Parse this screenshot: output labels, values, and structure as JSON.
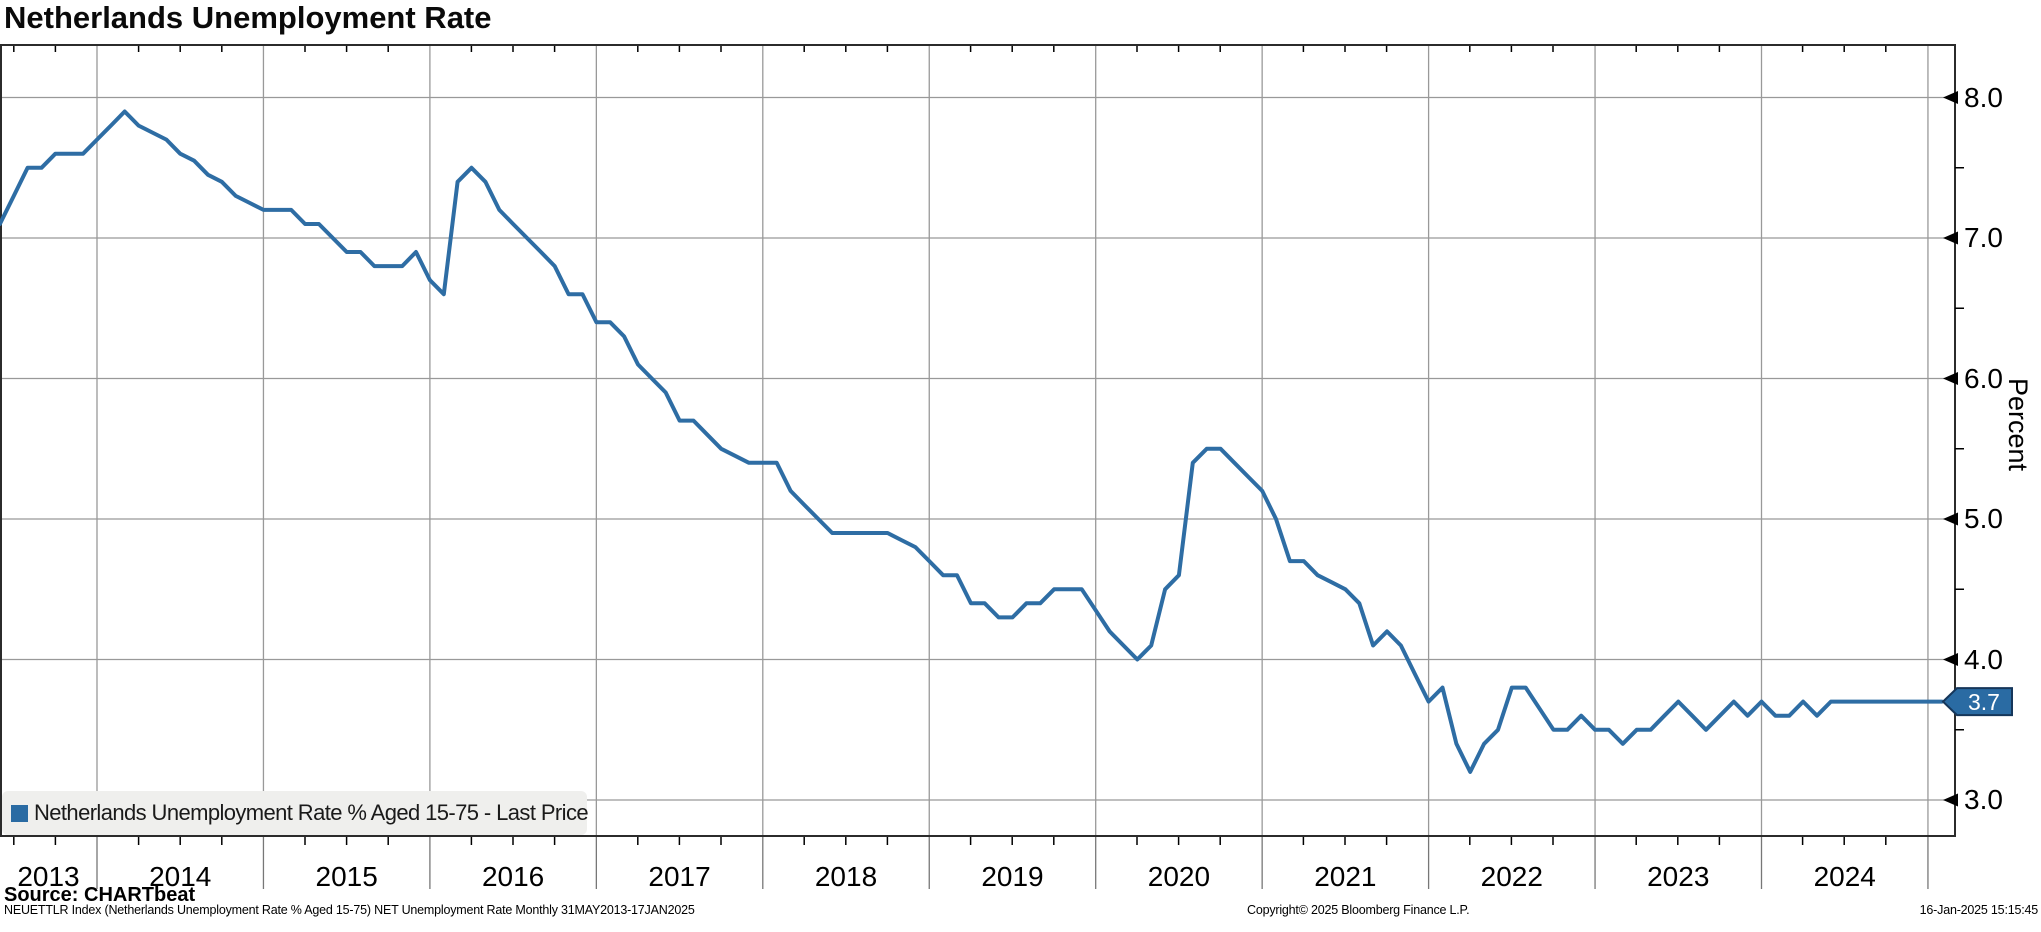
{
  "header": {
    "title": "Netherlands Unemployment Rate"
  },
  "legend": {
    "label": "Netherlands Unemployment Rate % Aged 15-75 - Last Price",
    "marker_color": "#2a6ba3"
  },
  "axis": {
    "percent_label": "Percent"
  },
  "badge": {
    "value": "3.7",
    "fill": "#2a6ba3",
    "border": "#15365a",
    "text_color": "#ffffff"
  },
  "footer": {
    "source": "Source: CHARTbeat",
    "description": "NEUETTLR Index (Netherlands Unemployment Rate % Aged 15-75) NET Unemployment Rate  Monthly 31MAY2013-17JAN2025",
    "copyright": "Copyright© 2025 Bloomberg Finance L.P.",
    "timestamp": "16-Jan-2025 15:15:45"
  },
  "chart_data": {
    "type": "line",
    "title": "Netherlands Unemployment Rate",
    "ylabel": "Percent",
    "series_name": "Netherlands Unemployment Rate % Aged 15-75 - Last Price",
    "frequency": "monthly",
    "range_label": "31MAY2013-17JAN2025",
    "first_month": "2013-05",
    "last_month": "2025-01",
    "last_price": 3.7,
    "line_color": "#2e6da4",
    "grid": true,
    "legend_position": "bottom-left",
    "y_ticks": [
      3.0,
      4.0,
      5.0,
      6.0,
      7.0,
      8.0
    ],
    "y_minor_ticks": [
      3.5,
      4.5,
      5.5,
      6.5,
      7.5
    ],
    "ylim": [
      2.6,
      8.4
    ],
    "x_years": [
      2013,
      2014,
      2015,
      2016,
      2017,
      2018,
      2019,
      2020,
      2021,
      2022,
      2023,
      2024
    ],
    "values": [
      7.1,
      7.3,
      7.5,
      7.5,
      7.6,
      7.6,
      7.6,
      7.7,
      7.8,
      7.9,
      7.8,
      7.75,
      7.7,
      7.6,
      7.55,
      7.45,
      7.4,
      7.3,
      7.25,
      7.2,
      7.2,
      7.2,
      7.1,
      7.1,
      7.0,
      6.9,
      6.9,
      6.8,
      6.8,
      6.8,
      6.9,
      6.7,
      6.6,
      7.4,
      7.5,
      7.4,
      7.2,
      7.1,
      7.0,
      6.9,
      6.8,
      6.6,
      6.6,
      6.4,
      6.4,
      6.3,
      6.1,
      6.0,
      5.9,
      5.7,
      5.7,
      5.6,
      5.5,
      5.45,
      5.4,
      5.4,
      5.4,
      5.2,
      5.1,
      5.0,
      4.9,
      4.9,
      4.9,
      4.9,
      4.9,
      4.85,
      4.8,
      4.7,
      4.6,
      4.6,
      4.4,
      4.4,
      4.3,
      4.3,
      4.4,
      4.4,
      4.5,
      4.5,
      4.5,
      4.35,
      4.2,
      4.1,
      4.0,
      4.1,
      4.5,
      4.6,
      5.4,
      5.5,
      5.5,
      5.4,
      5.3,
      5.2,
      5.0,
      4.7,
      4.7,
      4.6,
      4.55,
      4.5,
      4.4,
      4.1,
      4.2,
      4.1,
      3.9,
      3.7,
      3.8,
      3.4,
      3.2,
      3.4,
      3.5,
      3.8,
      3.8,
      3.65,
      3.5,
      3.5,
      3.6,
      3.5,
      3.5,
      3.4,
      3.5,
      3.5,
      3.6,
      3.7,
      3.6,
      3.5,
      3.6,
      3.7,
      3.6,
      3.7,
      3.6,
      3.6,
      3.7,
      3.6,
      3.7,
      3.7,
      3.7,
      3.7,
      3.7,
      3.7,
      3.7,
      3.7,
      3.7
    ]
  }
}
